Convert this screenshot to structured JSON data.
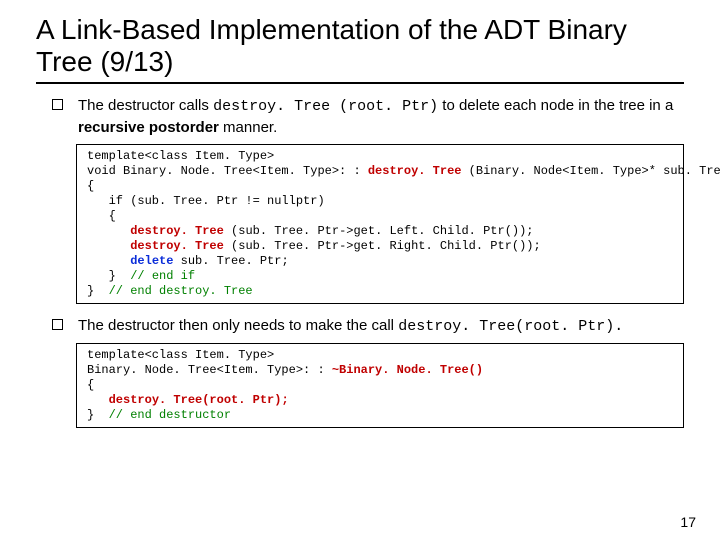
{
  "title": "A Link-Based Implementation of the ADT Binary Tree (9/13)",
  "bullet1": {
    "pre": "The destructor calls ",
    "code": "destroy. Tree (root. Ptr)",
    "mid": " to delete each node in the tree in a ",
    "bold": "recursive postorder",
    "post": " manner."
  },
  "code1": {
    "l1a": "template<class Item. Type>",
    "l2a": "void Binary. Node. Tree<Item. Type>: : ",
    "l2b": "destroy. Tree",
    "l2c": " (Binary. Node<Item. Type>* sub. Tree. Ptr)",
    "l3": "{",
    "l4": "   if (sub. Tree. Ptr != nullptr)",
    "l5": "   {",
    "l6a": "      ",
    "l6b": "destroy. Tree",
    "l6c": " (sub. Tree. Ptr->get. Left. Child. Ptr());",
    "l7a": "      ",
    "l7b": "destroy. Tree",
    "l7c": " (sub. Tree. Ptr->get. Right. Child. Ptr());",
    "l8a": "      ",
    "l8b": "delete",
    "l8c": " sub. Tree. Ptr;",
    "l9a": "   } ",
    "l9b": " // end if",
    "l10a": "} ",
    "l10b": " // end destroy. Tree"
  },
  "bullet2": {
    "pre": "The destructor then only needs to make the call ",
    "code": "destroy. Tree(root. Ptr)."
  },
  "code2": {
    "l1": "template<class Item. Type>",
    "l2a": "Binary. Node. Tree<Item. Type>: : ",
    "l2b": "~Binary. Node. Tree()",
    "l3": "{",
    "l4a": "   ",
    "l4b": "destroy. Tree(root. Ptr);",
    "l5a": "} ",
    "l5b": " // end destructor"
  },
  "pagenum": "17",
  "colors": {
    "red": "#c00000",
    "blue": "#0b2dd9",
    "green": "#008000",
    "black": "#000000",
    "bg": "#ffffff"
  }
}
